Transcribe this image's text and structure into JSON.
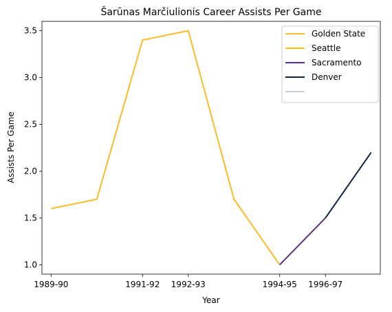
{
  "chart_data": {
    "type": "line",
    "title": "Šarūnas Marčiulionis Career Assists Per Game",
    "xlabel": "Year",
    "ylabel": "Assists Per Game",
    "x_tick_labels": [
      "1989-90",
      "1991-92",
      "1992-93",
      "1994-95",
      "1996-97"
    ],
    "x_tick_positions": [
      0,
      2,
      3,
      5,
      6
    ],
    "xlim": [
      -0.2,
      7.2
    ],
    "ylim": [
      0.9,
      3.6
    ],
    "y_ticks": [
      1.0,
      1.5,
      2.0,
      2.5,
      3.0,
      3.5
    ],
    "y_tick_labels": [
      "1.0",
      "1.5",
      "2.0",
      "2.5",
      "3.0",
      "3.5"
    ],
    "grid": false,
    "legend_position": "top-right",
    "series": [
      {
        "name": "Golden State",
        "color": "#FDB927",
        "points": [
          [
            0,
            1.6
          ],
          [
            1,
            1.7
          ],
          [
            2,
            3.4
          ],
          [
            3,
            3.5
          ],
          [
            4,
            1.7
          ],
          [
            5,
            1.0
          ]
        ]
      },
      {
        "name": "Seattle",
        "color": "#FFC200",
        "points": []
      },
      {
        "name": "Sacramento",
        "color": "#5A2D81",
        "points": [
          [
            5,
            1.0
          ],
          [
            6,
            1.5
          ]
        ]
      },
      {
        "name": "Denver",
        "color": "#0E2240",
        "points": [
          [
            6,
            1.5
          ],
          [
            7,
            2.2
          ]
        ]
      },
      {
        "name": "",
        "color": "#C4CED4",
        "points": []
      }
    ]
  }
}
